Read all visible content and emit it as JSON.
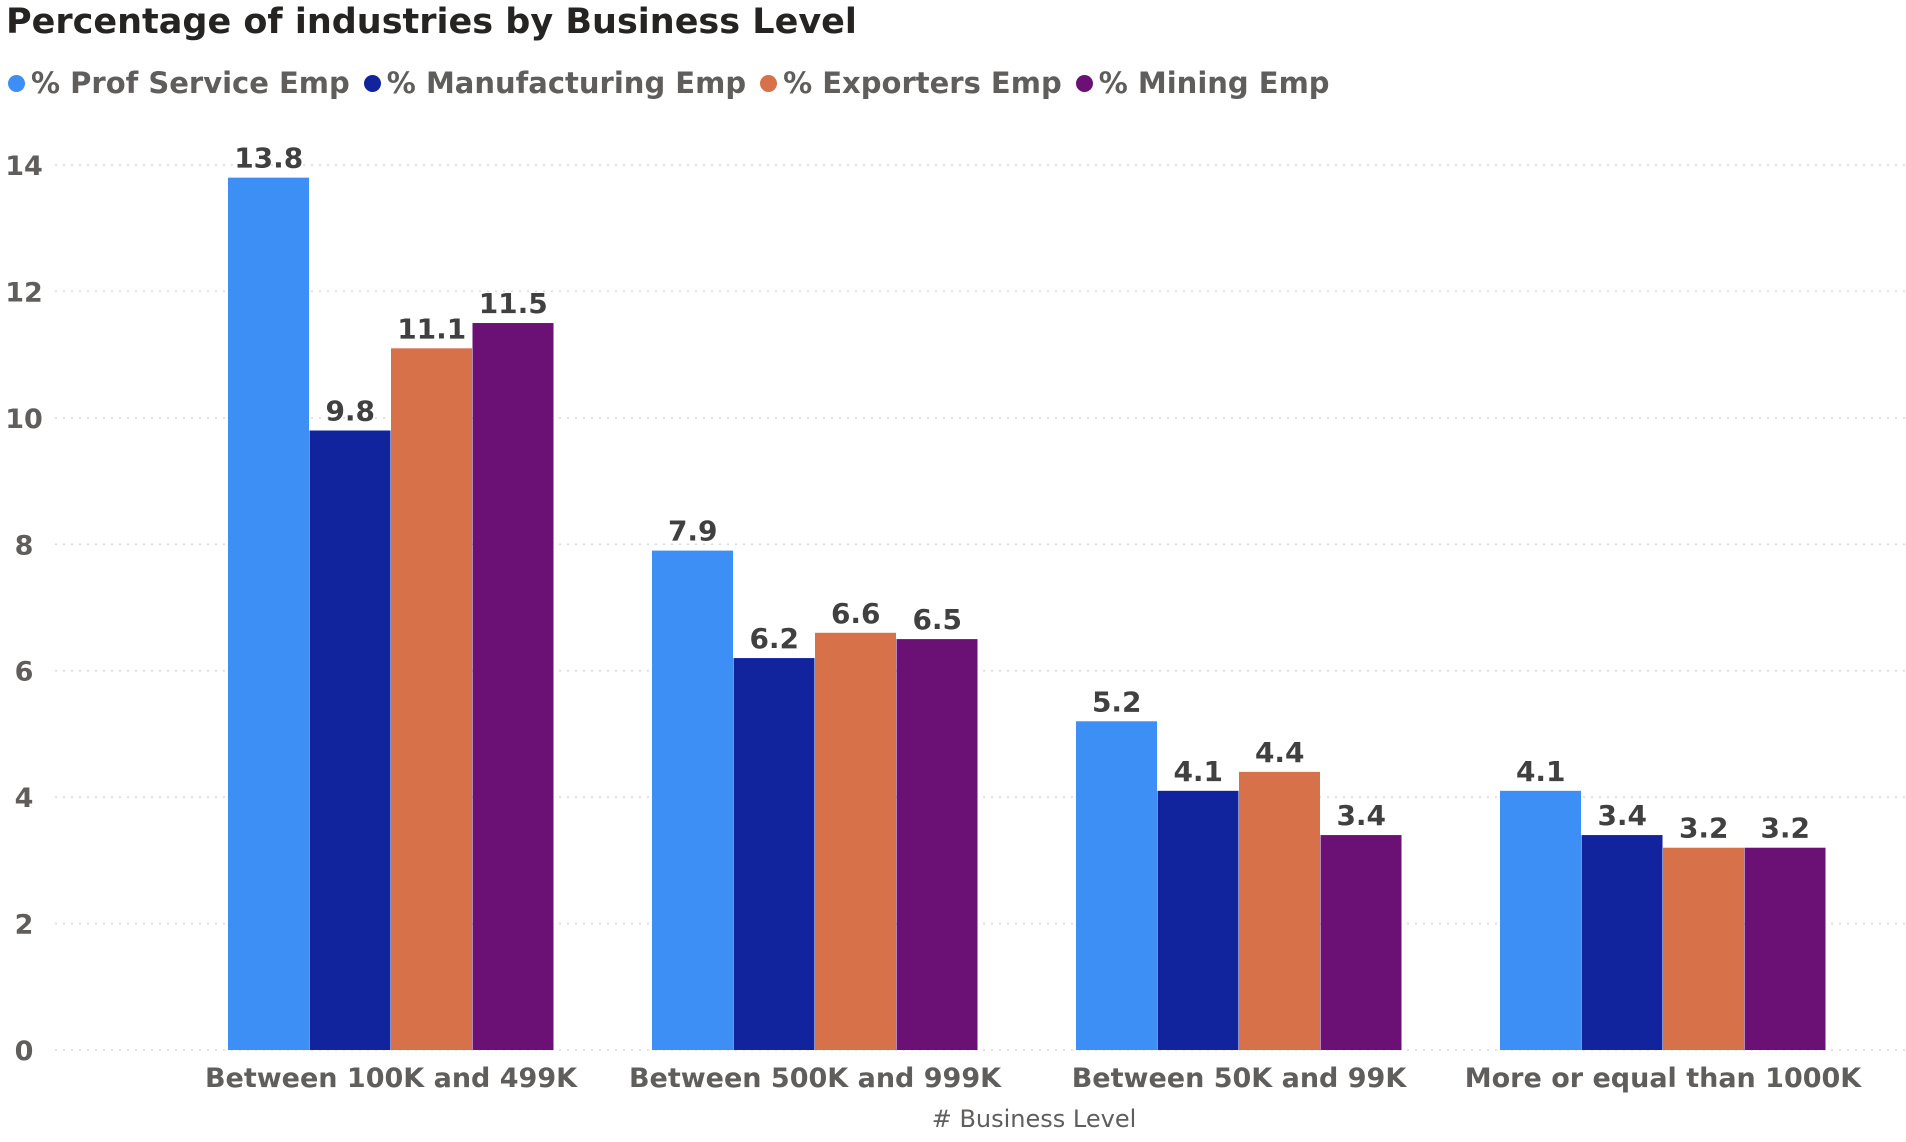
{
  "chart_data": {
    "type": "bar",
    "title": "Percentage of industries by Business Level",
    "xlabel": "# Business Level",
    "ylabel": "",
    "ylim": [
      0,
      14
    ],
    "yticks": [
      0,
      2,
      4,
      6,
      8,
      10,
      12,
      14
    ],
    "grid": true,
    "legend_position": "top-left",
    "categories": [
      "Between 100K and 499K",
      "Between 500K and 999K",
      "Between 50K and 99K",
      "More or equal than 1000K"
    ],
    "series": [
      {
        "name": "% Prof Service Emp",
        "color": "#3d8ef5",
        "values": [
          13.8,
          7.9,
          5.2,
          4.1
        ]
      },
      {
        "name": "% Manufacturing Emp",
        "color": "#12239e",
        "values": [
          9.8,
          6.2,
          4.1,
          3.4
        ]
      },
      {
        "name": "% Exporters Emp",
        "color": "#d7714a",
        "values": [
          11.1,
          6.6,
          4.4,
          3.2
        ]
      },
      {
        "name": "% Mining Emp",
        "color": "#6b1074",
        "values": [
          11.5,
          6.5,
          3.4,
          3.2
        ]
      }
    ]
  }
}
